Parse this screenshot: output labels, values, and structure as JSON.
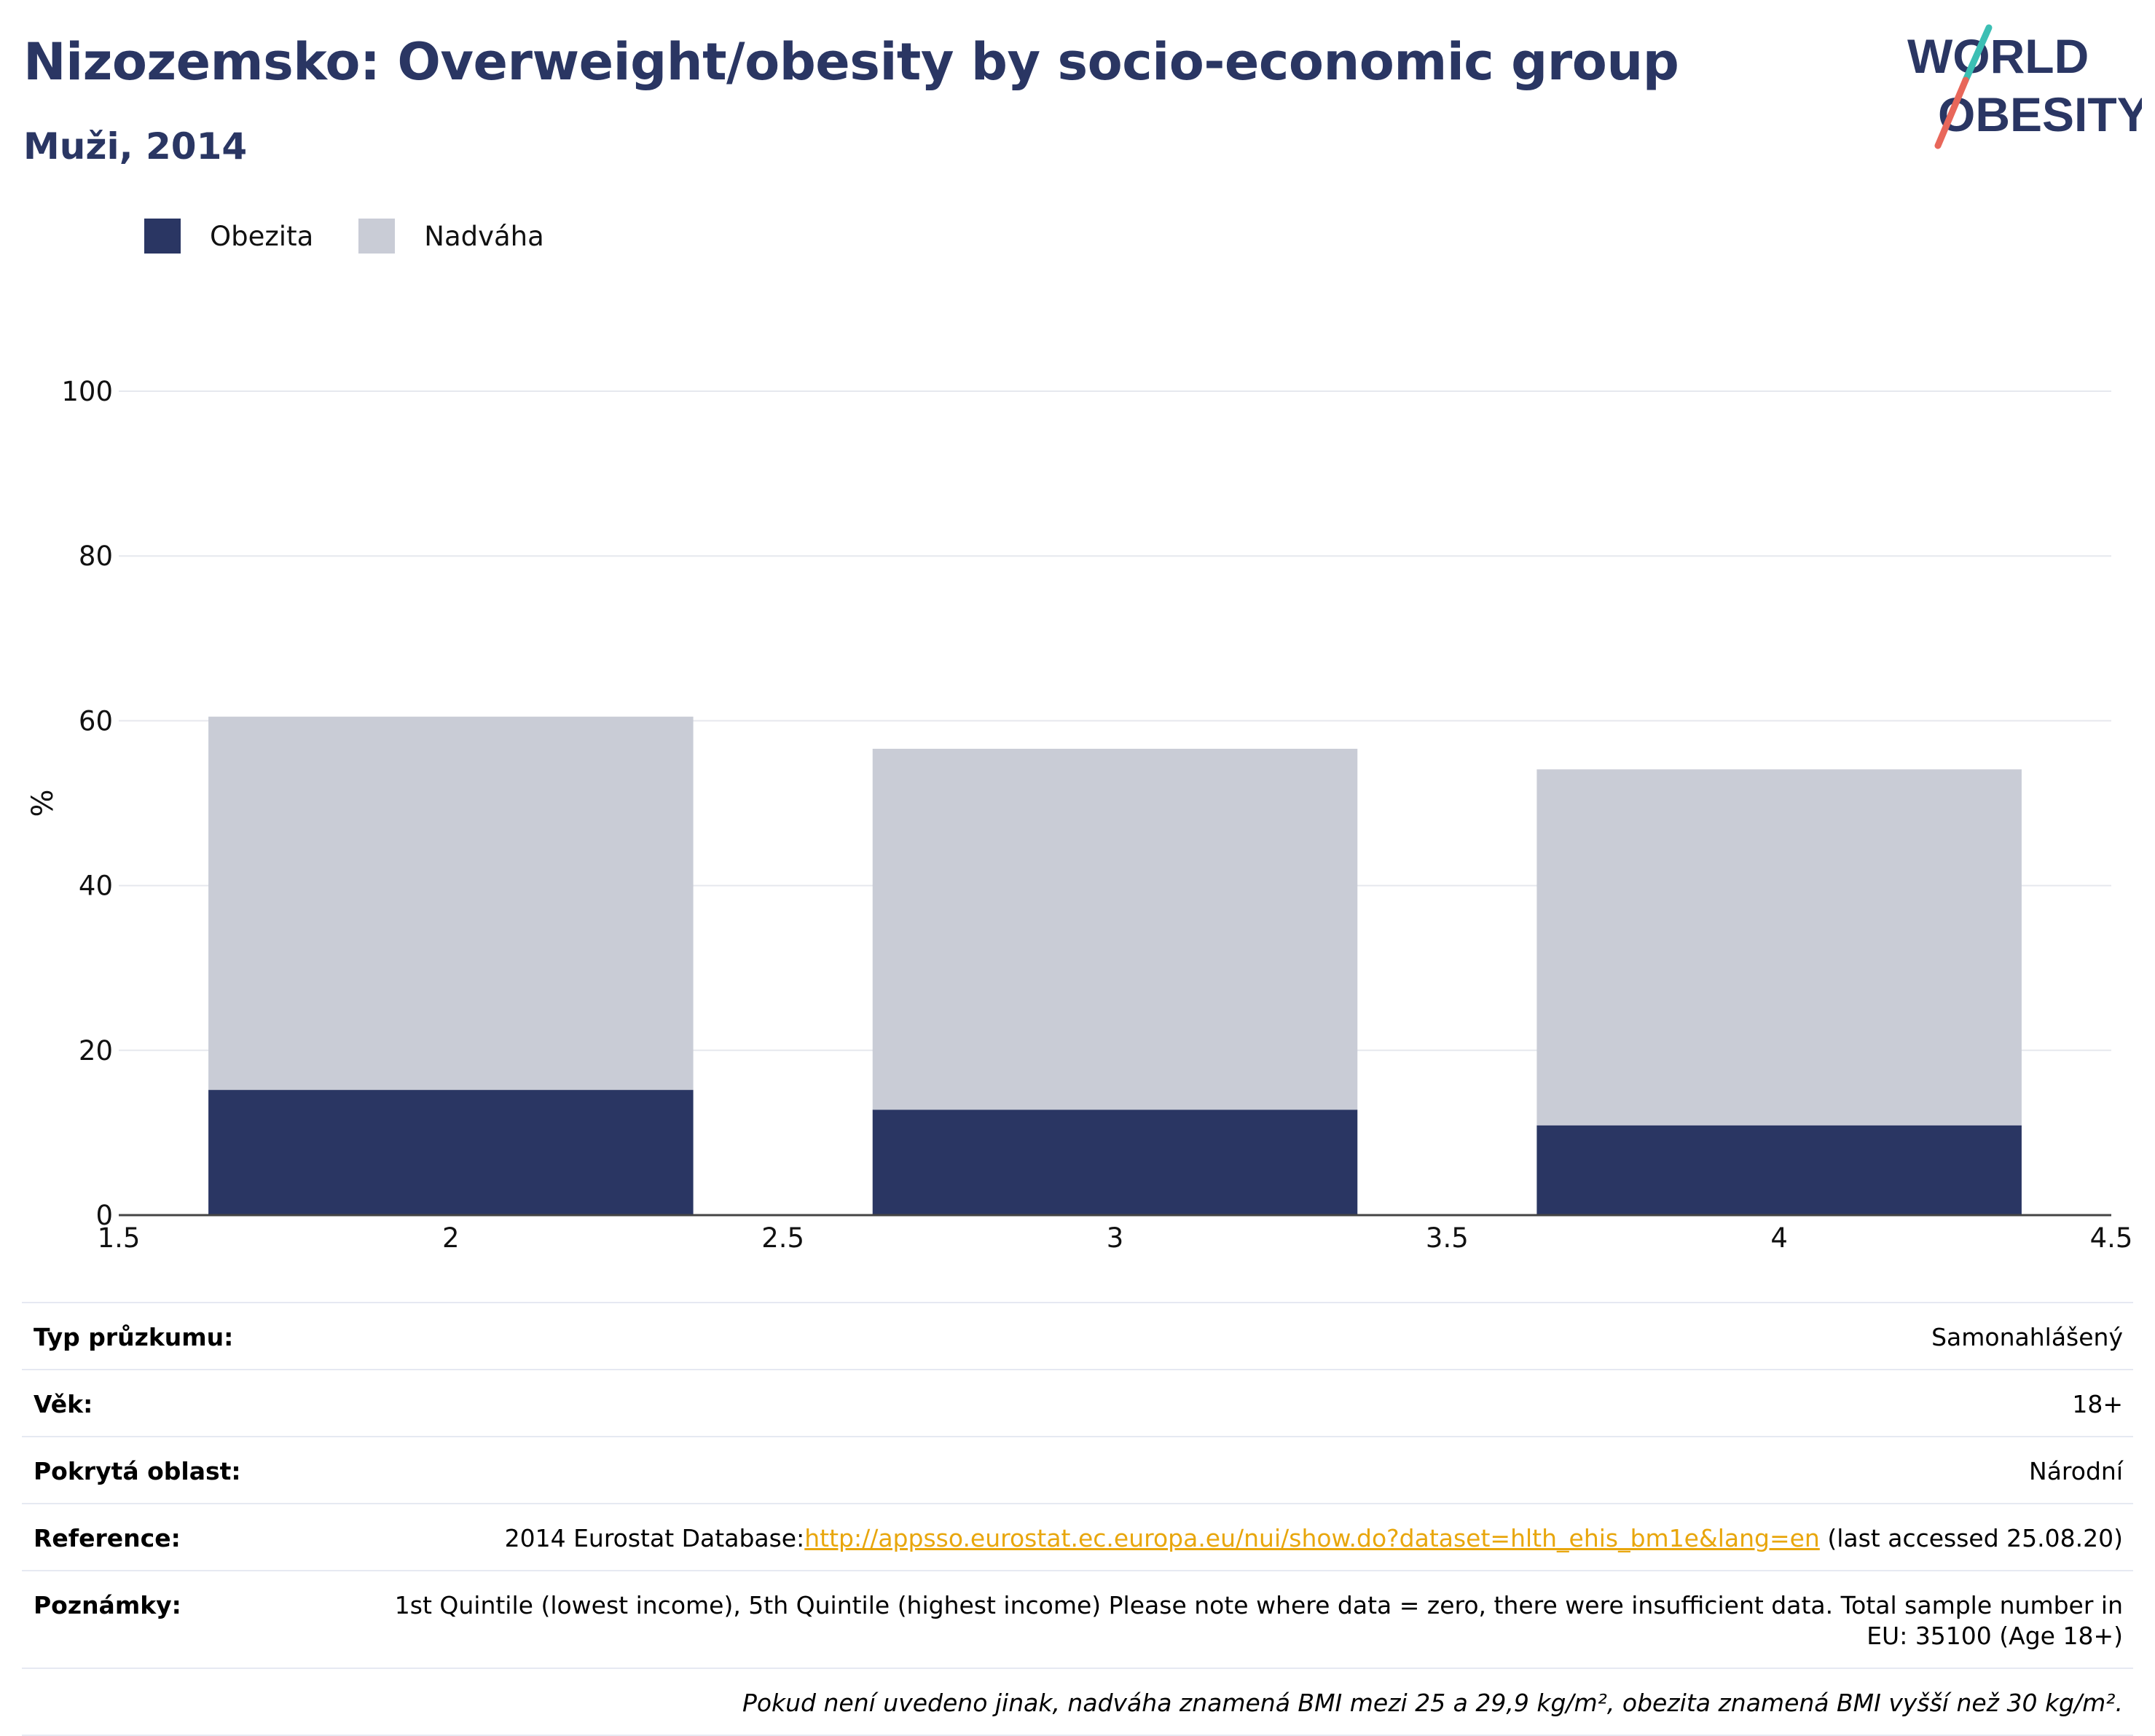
{
  "title": "Nizozemsko: Overweight/obesity by socio-economic group",
  "subtitle": "Muži, 2014",
  "logo": {
    "line1": "WORLD",
    "line2": "OBESITY",
    "accent_teal": "#3cbfb4",
    "accent_coral": "#e8675a"
  },
  "colors": {
    "obesity": "#2a3663",
    "overweight": "#c9ccd6",
    "title": "#2a3663",
    "link": "#e8a60c"
  },
  "legend": [
    {
      "name": "Obezita",
      "color": "#2a3663"
    },
    {
      "name": "Nadváha",
      "color": "#c9ccd6"
    }
  ],
  "chart_data": {
    "type": "bar",
    "stacked": true,
    "x": [
      2,
      3,
      4
    ],
    "series": [
      {
        "name": "Obezita",
        "values": [
          15.2,
          12.8,
          10.9
        ]
      },
      {
        "name": "Nadváha",
        "values": [
          45.3,
          43.8,
          43.2
        ]
      }
    ],
    "xlim": [
      1.5,
      4.5
    ],
    "xticks": [
      "1.5",
      "2",
      "2.5",
      "3",
      "3.5",
      "4",
      "4.5"
    ],
    "ylim": [
      0,
      100
    ],
    "yticks": [
      "0",
      "20",
      "40",
      "60",
      "80",
      "100"
    ],
    "ylabel": "%",
    "bar_width": 0.73,
    "grid": true,
    "legend_position": "top-left"
  },
  "info": {
    "rows": [
      {
        "label": "Typ průzkumu:",
        "value": "Samonahlášený"
      },
      {
        "label": "Věk:",
        "value": "18+"
      },
      {
        "label": "Pokrytá oblast:",
        "value": "Národní"
      }
    ],
    "reference": {
      "label": "Reference:",
      "prefix": "2014 Eurostat Database:",
      "link": "http://appsso.eurostat.ec.europa.eu/nui/show.do?dataset=hlth_ehis_bm1e&lang=en",
      "suffix": " (last accessed 25.08.20)"
    },
    "notes": {
      "label": "Poznámky:",
      "value": "1st Quintile (lowest income), 5th Quintile (highest income) Please note where data = zero, there were insufficient data. Total sample number in EU: 35100 (Age 18+)"
    },
    "footnote": "Pokud není uvedeno jinak, nadváha znamená BMI mezi 25 a 29,9 kg/m², obezita znamená BMI vyšší než 30 kg/m²."
  }
}
